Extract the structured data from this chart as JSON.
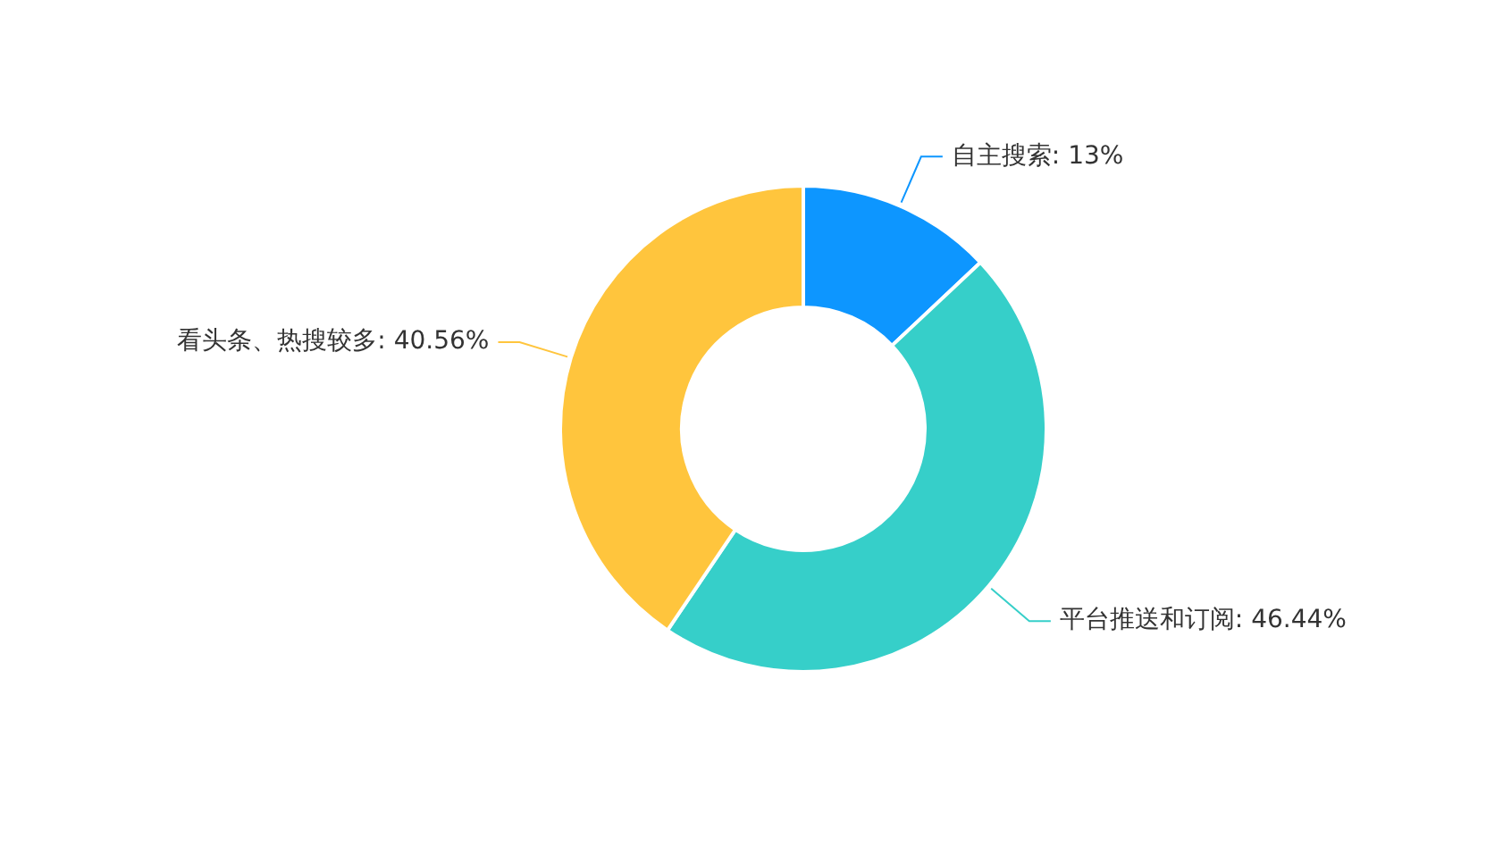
{
  "chart_data": {
    "type": "donut",
    "categories": [
      "自主搜索",
      "平台推送和订阅",
      "看头条、热搜较多"
    ],
    "values": [
      13,
      46.44,
      40.56
    ],
    "value_labels": [
      "13%",
      "46.44%",
      "40.56%"
    ],
    "colors": [
      "#0d96ff",
      "#36cfc9",
      "#ffc53d"
    ],
    "legend": false
  }
}
